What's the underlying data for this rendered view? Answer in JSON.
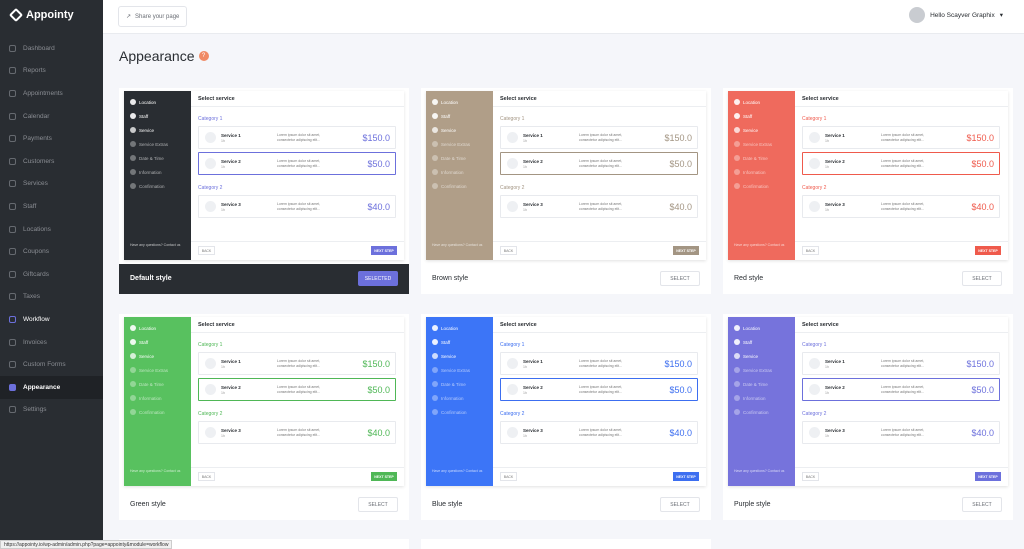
{
  "app": {
    "name": "Appointy"
  },
  "topbar": {
    "share_label": "Share your page",
    "user_name": "Hello Scayver Graphix"
  },
  "nav": [
    {
      "label": "Dashboard",
      "icon": "dashboard-icon"
    },
    {
      "label": "Reports",
      "icon": "chart-icon"
    },
    {
      "label": "Appointments",
      "icon": "calendar-check-icon"
    },
    {
      "label": "Calendar",
      "icon": "calendar-icon"
    },
    {
      "label": "Payments",
      "icon": "credit-card-icon"
    },
    {
      "label": "Customers",
      "icon": "users-icon"
    },
    {
      "label": "Services",
      "icon": "briefcase-icon"
    },
    {
      "label": "Staff",
      "icon": "user-icon"
    },
    {
      "label": "Locations",
      "icon": "pin-icon"
    },
    {
      "label": "Coupons",
      "icon": "ticket-icon"
    },
    {
      "label": "Giftcards",
      "icon": "gift-icon"
    },
    {
      "label": "Taxes",
      "icon": "percent-icon"
    },
    {
      "label": "Workflow",
      "icon": "workflow-icon"
    },
    {
      "label": "Invoices",
      "icon": "invoice-icon"
    },
    {
      "label": "Custom Forms",
      "icon": "form-icon"
    },
    {
      "label": "Appearance",
      "icon": "brush-icon"
    },
    {
      "label": "Settings",
      "icon": "gear-icon"
    }
  ],
  "page": {
    "title": "Appearance",
    "badge": "?"
  },
  "preview": {
    "steps": [
      "Location",
      "Staff",
      "Service",
      "Service Extras",
      "Date & Time",
      "Information",
      "Confirmation"
    ],
    "select_title": "Select service",
    "category1": "Category 1",
    "category2": "Category 2",
    "services": [
      {
        "name": "Service 1",
        "sub": "1h",
        "desc": "Lorem ipsum dolor sit amet, consectetur adipiscing elit...",
        "price": "$150.0"
      },
      {
        "name": "Service 2",
        "sub": "1h",
        "desc": "Lorem ipsum dolor sit amet, consectetur adipiscing elit...",
        "price": "$50.0"
      },
      {
        "name": "Service 3",
        "sub": "1h",
        "desc": "Lorem ipsum dolor sit amet, consectetur adipiscing elit...",
        "price": "$40.0"
      }
    ],
    "footer_text": "Have any questions? Contact us",
    "back_label": "BACK",
    "next_label": "NEXT STEP"
  },
  "styles": [
    {
      "name": "Default style",
      "button": "SELECTED",
      "selected": true,
      "side": "#292d32",
      "accent": "#6c70dc",
      "text": "#fff"
    },
    {
      "name": "Brown style",
      "button": "SELECT",
      "selected": false,
      "side": "#b09e88",
      "accent": "#a39583",
      "text": "#fff"
    },
    {
      "name": "Red style",
      "button": "SELECT",
      "selected": false,
      "side": "#ef6a5d",
      "accent": "#ef5a4c",
      "text": "#fff"
    },
    {
      "name": "Green style",
      "button": "SELECT",
      "selected": false,
      "side": "#58c15f",
      "accent": "#4fb756",
      "text": "#fff"
    },
    {
      "name": "Blue style",
      "button": "SELECT",
      "selected": false,
      "side": "#3c75f7",
      "accent": "#3c6ef0",
      "text": "#fff"
    },
    {
      "name": "Purple style",
      "button": "SELECT",
      "selected": false,
      "side": "#7673dc",
      "accent": "#6c70dc",
      "text": "#fff"
    }
  ],
  "statusbar": {
    "url": "https://appointy.io/wp-admin/admin.php?page=appointy&module=workflow"
  }
}
